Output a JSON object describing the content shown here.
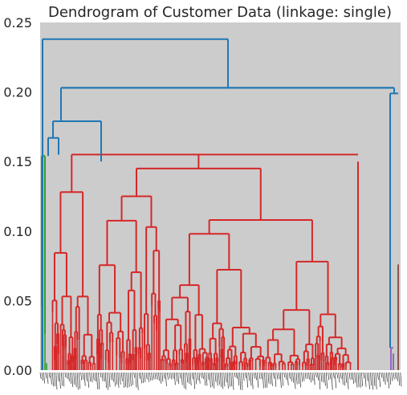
{
  "chart_data": {
    "type": "dendrogram",
    "title": "Dendrogram of Customer Data (linkage: single)",
    "xlabel": "",
    "ylabel": "",
    "ylim": [
      0,
      0.25
    ],
    "yticks": [
      "0.00",
      "0.05",
      "0.10",
      "0.15",
      "0.20",
      "0.25"
    ],
    "grid": false,
    "background": "#cccccc",
    "colors": {
      "above_threshold": "#1f77b4",
      "cluster_green": "#2ca02c",
      "cluster_red": "#d62728",
      "cluster_purple": "#9467bd",
      "cluster_brown": "#8c564b"
    },
    "leaf_labels_legible": false,
    "major_merges": [
      {
        "height": 0.238,
        "cluster": "above_threshold"
      },
      {
        "height": 0.203,
        "cluster": "above_threshold"
      },
      {
        "height": 0.201,
        "cluster": "above_threshold"
      },
      {
        "height": 0.199,
        "cluster": "above_threshold"
      },
      {
        "height": 0.179,
        "cluster": "above_threshold"
      },
      {
        "height": 0.167,
        "cluster": "above_threshold"
      },
      {
        "height": 0.155,
        "cluster": "cluster_red"
      },
      {
        "height": 0.154,
        "cluster": "cluster_green"
      },
      {
        "height": 0.076,
        "cluster": "cluster_brown"
      },
      {
        "height": 0.016,
        "cluster": "cluster_purple"
      }
    ]
  }
}
